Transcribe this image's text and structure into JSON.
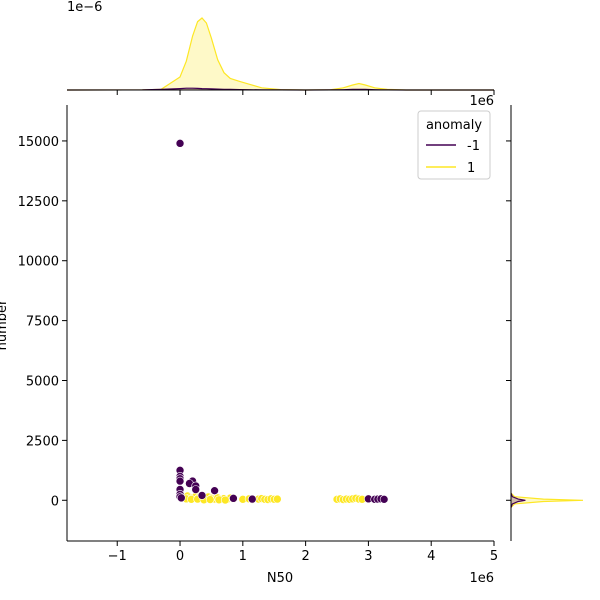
{
  "chart_data": {
    "type": "scatter",
    "title": "",
    "xlabel": "N50",
    "ylabel": "number",
    "xlim": [
      -1800000,
      5000000
    ],
    "ylim": [
      -1700000,
      16500
    ],
    "x_tick_values": [
      -1000000,
      0,
      1000000,
      2000000,
      3000000,
      4000000,
      5000000
    ],
    "x_tick_labels": [
      "−1",
      "0",
      "1",
      "2",
      "3",
      "4",
      "5"
    ],
    "y_tick_values": [
      0,
      2500,
      5000,
      7500,
      10000,
      12500,
      15000
    ],
    "y_tick_labels": [
      "0",
      "2500",
      "5000",
      "7500",
      "10000",
      "12500",
      "15000"
    ],
    "x_offset_label": "1e6",
    "top_marginal_offset_label": "1e−6",
    "top_marginal_x_offset_label": "1e6",
    "legend": {
      "title": "anomaly",
      "placement": "upper right",
      "entries": [
        {
          "label": "-1",
          "color": "#440154"
        },
        {
          "label": "1",
          "color": "#fde725"
        }
      ]
    },
    "series": [
      {
        "name": "1",
        "color": "#fde725",
        "points": [
          [
            50000,
            150
          ],
          [
            80000,
            120
          ],
          [
            120000,
            180
          ],
          [
            150000,
            100
          ],
          [
            200000,
            90
          ],
          [
            250000,
            160
          ],
          [
            300000,
            110
          ],
          [
            350000,
            200
          ],
          [
            400000,
            60
          ],
          [
            450000,
            140
          ],
          [
            500000,
            80
          ],
          [
            550000,
            50
          ],
          [
            600000,
            100
          ],
          [
            650000,
            40
          ],
          [
            700000,
            70
          ],
          [
            750000,
            30
          ],
          [
            800000,
            90
          ],
          [
            850000,
            60
          ],
          [
            100000,
            60
          ],
          [
            180000,
            40
          ],
          [
            280000,
            50
          ],
          [
            380000,
            20
          ],
          [
            480000,
            30
          ],
          [
            620000,
            20
          ],
          [
            720000,
            10
          ],
          [
            1000000,
            40
          ],
          [
            1100000,
            60
          ],
          [
            1150000,
            30
          ],
          [
            1250000,
            50
          ],
          [
            1300000,
            70
          ],
          [
            1350000,
            40
          ],
          [
            1400000,
            30
          ],
          [
            1450000,
            60
          ],
          [
            1500000,
            40
          ],
          [
            1550000,
            50
          ],
          [
            2500000,
            40
          ],
          [
            2550000,
            60
          ],
          [
            2600000,
            30
          ],
          [
            2650000,
            50
          ],
          [
            2700000,
            40
          ],
          [
            2750000,
            60
          ],
          [
            2800000,
            80
          ],
          [
            2850000,
            50
          ],
          [
            2900000,
            40
          ]
        ]
      },
      {
        "name": "-1",
        "color": "#440154",
        "points": [
          [
            0,
            14900
          ],
          [
            0,
            1250
          ],
          [
            0,
            1000
          ],
          [
            0,
            900
          ],
          [
            0,
            800
          ],
          [
            0,
            450
          ],
          [
            0,
            250
          ],
          [
            0,
            150
          ],
          [
            20000,
            100
          ],
          [
            200000,
            800
          ],
          [
            150000,
            700
          ],
          [
            250000,
            600
          ],
          [
            250000,
            450
          ],
          [
            350000,
            200
          ],
          [
            550000,
            400
          ],
          [
            850000,
            80
          ],
          [
            1150000,
            50
          ],
          [
            3000000,
            60
          ],
          [
            3100000,
            40
          ],
          [
            3150000,
            50
          ],
          [
            3200000,
            60
          ],
          [
            3250000,
            40
          ]
        ]
      }
    ],
    "top_marginal": {
      "type": "kde",
      "x": [
        -1800000,
        -600000,
        -300000,
        0,
        100000,
        200000,
        280000,
        350000,
        420000,
        500000,
        600000,
        700000,
        800000,
        950000,
        1100000,
        1300000,
        1600000,
        2000000,
        2400000,
        2600000,
        2750000,
        2850000,
        2950000,
        3100000,
        3300000,
        3600000,
        5000000
      ],
      "series": [
        {
          "name": "1",
          "color": "#fde725",
          "density": [
            0,
            0.001,
            0.01,
            0.18,
            0.4,
            0.75,
            0.95,
            1.0,
            0.93,
            0.72,
            0.42,
            0.24,
            0.16,
            0.12,
            0.08,
            0.03,
            0.005,
            0,
            0.004,
            0.03,
            0.07,
            0.09,
            0.07,
            0.03,
            0.008,
            0,
            0
          ]
        },
        {
          "name": "-1",
          "color": "#440154",
          "density": [
            0,
            0.002,
            0.008,
            0.02,
            0.025,
            0.025,
            0.022,
            0.02,
            0.018,
            0.015,
            0.012,
            0.01,
            0.008,
            0.006,
            0.004,
            0.002,
            0.001,
            0,
            0.001,
            0.004,
            0.008,
            0.01,
            0.008,
            0.004,
            0.001,
            0,
            0
          ]
        }
      ]
    },
    "right_marginal": {
      "type": "kde",
      "y": [
        -300,
        -150,
        -50,
        0,
        50,
        150,
        300
      ],
      "series": [
        {
          "name": "1",
          "color": "#fde725",
          "density": [
            0,
            0.05,
            0.45,
            1.0,
            0.45,
            0.05,
            0
          ]
        },
        {
          "name": "-1",
          "color": "#440154",
          "density": [
            0,
            0.02,
            0.1,
            0.2,
            0.1,
            0.02,
            0
          ]
        }
      ]
    }
  }
}
